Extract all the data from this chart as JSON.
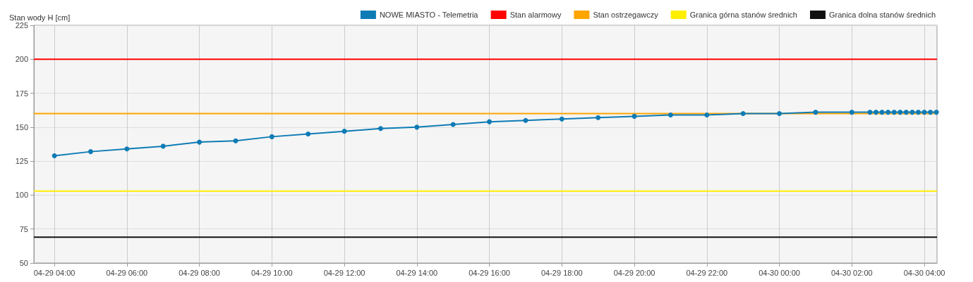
{
  "chart_data": {
    "type": "line",
    "ylabel": "Stan wody H [cm]",
    "x": [
      "--04-29T04:00",
      "--04-29T05:00",
      "--04-29T06:00",
      "--04-29T07:00",
      "--04-29T08:00",
      "--04-29T09:00",
      "--04-29T10:00",
      "--04-29T11:00",
      "--04-29T12:00",
      "--04-29T13:00",
      "--04-29T14:00",
      "--04-29T15:00",
      "--04-29T16:00",
      "--04-29T17:00",
      "--04-29T18:00",
      "--04-29T19:00",
      "--04-29T20:00",
      "--04-29T21:00",
      "--04-29T22:00",
      "--04-29T23:00",
      "--04-30T00:00",
      "--04-30T01:00",
      "--04-30T02:00",
      "--04-30T02:30",
      "--04-30T02:40",
      "--04-30T02:50",
      "--04-30T03:00",
      "--04-30T03:10",
      "--04-30T03:20",
      "--04-30T03:30",
      "--04-30T03:40",
      "--04-30T03:50",
      "--04-30T04:00",
      "--04-30T04:10",
      "--04-30T04:20"
    ],
    "series": [
      {
        "name": "NOWE MIASTO - Telemetria",
        "color": "#0e7bb5",
        "values": [
          129,
          132,
          134,
          136,
          139,
          140,
          143,
          145,
          147,
          149,
          150,
          152,
          154,
          155,
          156,
          157,
          158,
          159,
          159,
          160,
          160,
          161,
          161,
          161,
          161,
          161,
          161,
          161,
          161,
          161,
          161,
          161,
          161,
          161,
          161
        ]
      }
    ],
    "ref_lines": [
      {
        "axis": "y",
        "value": 200,
        "label": "Stan alarmowy",
        "color": "#ff0000"
      },
      {
        "axis": "y",
        "value": 160,
        "label": "Stan ostrzegawczy",
        "color": "#ffa500"
      },
      {
        "axis": "y",
        "value": 103,
        "label": "Granica górna stanów średnich",
        "color": "#ffee00"
      },
      {
        "axis": "y",
        "value": 69,
        "label": "Granica dolna stanów średnich",
        "color": "#111111"
      }
    ],
    "xlim": [
      "--04-29T03:26",
      "--04-30T04:21"
    ],
    "xticks": [
      {
        "value": "--04-29T04:00",
        "label": "04-29 04:00"
      },
      {
        "value": "--04-29T06:00",
        "label": "04-29 06:00"
      },
      {
        "value": "--04-29T08:00",
        "label": "04-29 08:00"
      },
      {
        "value": "--04-29T10:00",
        "label": "04-29 10:00"
      },
      {
        "value": "--04-29T12:00",
        "label": "04-29 12:00"
      },
      {
        "value": "--04-29T14:00",
        "label": "04-29 14:00"
      },
      {
        "value": "--04-29T16:00",
        "label": "04-29 16:00"
      },
      {
        "value": "--04-29T18:00",
        "label": "04-29 18:00"
      },
      {
        "value": "--04-29T20:00",
        "label": "04-29 20:00"
      },
      {
        "value": "--04-29T22:00",
        "label": "04-29 22:00"
      },
      {
        "value": "--04-30T00:00",
        "label": "04-30 00:00"
      },
      {
        "value": "--04-30T02:00",
        "label": "04-30 02:00"
      },
      {
        "value": "--04-30T04:00",
        "label": "04-30 04:00"
      }
    ],
    "ylim": [
      50,
      225
    ],
    "yticks": [
      50,
      75,
      100,
      125,
      150,
      175,
      200,
      225
    ],
    "grid": true,
    "legend": "top right",
    "marker": "circle",
    "line_style": "solid"
  }
}
